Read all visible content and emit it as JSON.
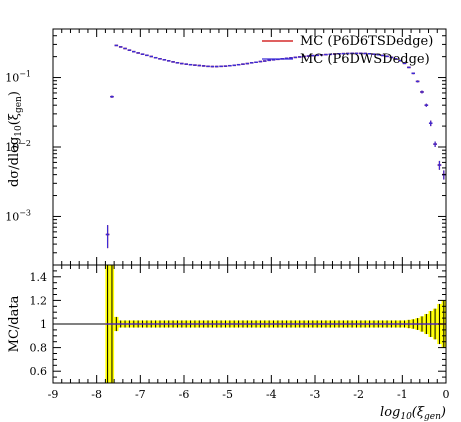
{
  "chart_data": [
    {
      "type": "scatter",
      "ylabel": "dσ/dlog10(ξgen)",
      "ylabel_parts": {
        "main": "dσ/dlog",
        "sub": "10",
        "paren_open": "(ξ",
        "var_sub": "gen",
        "paren_close": ")"
      },
      "y_scale": "log",
      "xlim": [
        -9,
        0
      ],
      "ylim": [
        0.0002,
        0.5
      ],
      "y_ticks": [
        {
          "value": 0.001,
          "base": "10",
          "exp": "−3"
        },
        {
          "value": 0.01,
          "base": "10",
          "exp": "−2"
        },
        {
          "value": 0.1,
          "base": "10",
          "exp": "−1"
        }
      ],
      "legend_position": "top-right",
      "series": [
        {
          "name": "MC (P6D6TSDedge)",
          "color": "#cc0000",
          "x": [
            -7.75,
            -7.65,
            -7.55,
            -7.45,
            -7.35,
            -7.25,
            -7.15,
            -7.05,
            -6.95,
            -6.85,
            -6.75,
            -6.65,
            -6.55,
            -6.45,
            -6.35,
            -6.25,
            -6.15,
            -6.05,
            -5.95,
            -5.85,
            -5.75,
            -5.65,
            -5.55,
            -5.45,
            -5.35,
            -5.25,
            -5.15,
            -5.05,
            -4.95,
            -4.85,
            -4.75,
            -4.65,
            -4.55,
            -4.45,
            -4.35,
            -4.25,
            -4.15,
            -4.05,
            -3.95,
            -3.85,
            -3.75,
            -3.65,
            -3.55,
            -3.45,
            -3.35,
            -3.25,
            -3.15,
            -3.05,
            -2.95,
            -2.85,
            -2.75,
            -2.65,
            -2.55,
            -2.45,
            -2.35,
            -2.25,
            -2.15,
            -2.05,
            -1.95,
            -1.85,
            -1.75,
            -1.65,
            -1.55,
            -1.45,
            -1.35,
            -1.25,
            -1.15,
            -1.05,
            -0.95,
            -0.85,
            -0.75,
            -0.65,
            -0.55,
            -0.45,
            -0.35,
            -0.25,
            -0.15,
            -0.05
          ],
          "y": [
            0.00055,
            0.053,
            0.29,
            0.276,
            0.262,
            0.248,
            0.236,
            0.226,
            0.217,
            0.209,
            0.201,
            0.193,
            0.186,
            0.18,
            0.174,
            0.168,
            0.163,
            0.159,
            0.156,
            0.153,
            0.151,
            0.149,
            0.147,
            0.145,
            0.144,
            0.144,
            0.145,
            0.146,
            0.148,
            0.15,
            0.153,
            0.156,
            0.159,
            0.163,
            0.166,
            0.17,
            0.173,
            0.177,
            0.18,
            0.183,
            0.186,
            0.189,
            0.192,
            0.195,
            0.198,
            0.201,
            0.204,
            0.207,
            0.209,
            0.212,
            0.214,
            0.216,
            0.218,
            0.22,
            0.221,
            0.222,
            0.223,
            0.223,
            0.223,
            0.222,
            0.22,
            0.217,
            0.213,
            0.208,
            0.202,
            0.195,
            0.186,
            0.175,
            0.16,
            0.14,
            0.115,
            0.088,
            0.062,
            0.04,
            0.022,
            0.011,
            0.0055,
            0.004
          ],
          "y_err": [
            0.0002,
            0.002,
            0.004,
            0.003,
            0.003,
            0.003,
            0.003,
            0.003,
            0.003,
            0.003,
            0.003,
            0.003,
            0.003,
            0.003,
            0.003,
            0.003,
            0.003,
            0.003,
            0.003,
            0.003,
            0.003,
            0.003,
            0.003,
            0.003,
            0.003,
            0.003,
            0.003,
            0.003,
            0.003,
            0.003,
            0.003,
            0.003,
            0.003,
            0.003,
            0.003,
            0.003,
            0.003,
            0.003,
            0.003,
            0.003,
            0.003,
            0.003,
            0.003,
            0.003,
            0.003,
            0.003,
            0.003,
            0.003,
            0.003,
            0.003,
            0.003,
            0.003,
            0.003,
            0.003,
            0.003,
            0.003,
            0.003,
            0.003,
            0.003,
            0.003,
            0.003,
            0.003,
            0.003,
            0.003,
            0.003,
            0.003,
            0.003,
            0.003,
            0.003,
            0.003,
            0.003,
            0.003,
            0.003,
            0.002,
            0.002,
            0.001,
            0.0008,
            0.0006
          ]
        },
        {
          "name": "MC (P6DWSDedge)",
          "color": "#3b2bd6",
          "x": [
            -7.75,
            -7.65,
            -7.55,
            -7.45,
            -7.35,
            -7.25,
            -7.15,
            -7.05,
            -6.95,
            -6.85,
            -6.75,
            -6.65,
            -6.55,
            -6.45,
            -6.35,
            -6.25,
            -6.15,
            -6.05,
            -5.95,
            -5.85,
            -5.75,
            -5.65,
            -5.55,
            -5.45,
            -5.35,
            -5.25,
            -5.15,
            -5.05,
            -4.95,
            -4.85,
            -4.75,
            -4.65,
            -4.55,
            -4.45,
            -4.35,
            -4.25,
            -4.15,
            -4.05,
            -3.95,
            -3.85,
            -3.75,
            -3.65,
            -3.55,
            -3.45,
            -3.35,
            -3.25,
            -3.15,
            -3.05,
            -2.95,
            -2.85,
            -2.75,
            -2.65,
            -2.55,
            -2.45,
            -2.35,
            -2.25,
            -2.15,
            -2.05,
            -1.95,
            -1.85,
            -1.75,
            -1.65,
            -1.55,
            -1.45,
            -1.35,
            -1.25,
            -1.15,
            -1.05,
            -0.95,
            -0.85,
            -0.75,
            -0.65,
            -0.55,
            -0.45,
            -0.35,
            -0.25,
            -0.15,
            -0.05
          ],
          "y": [
            0.00055,
            0.053,
            0.29,
            0.276,
            0.262,
            0.248,
            0.236,
            0.226,
            0.217,
            0.209,
            0.201,
            0.193,
            0.186,
            0.18,
            0.174,
            0.168,
            0.163,
            0.159,
            0.156,
            0.153,
            0.151,
            0.149,
            0.147,
            0.145,
            0.144,
            0.144,
            0.145,
            0.146,
            0.148,
            0.15,
            0.153,
            0.156,
            0.159,
            0.163,
            0.166,
            0.17,
            0.173,
            0.177,
            0.18,
            0.183,
            0.186,
            0.189,
            0.192,
            0.195,
            0.198,
            0.201,
            0.204,
            0.207,
            0.209,
            0.212,
            0.214,
            0.216,
            0.218,
            0.22,
            0.221,
            0.222,
            0.223,
            0.223,
            0.223,
            0.222,
            0.22,
            0.217,
            0.213,
            0.208,
            0.202,
            0.195,
            0.186,
            0.175,
            0.16,
            0.14,
            0.115,
            0.088,
            0.062,
            0.04,
            0.022,
            0.011,
            0.0055,
            0.004
          ],
          "y_err": [
            0.0002,
            0.002,
            0.004,
            0.003,
            0.003,
            0.003,
            0.003,
            0.003,
            0.003,
            0.003,
            0.003,
            0.003,
            0.003,
            0.003,
            0.003,
            0.003,
            0.003,
            0.003,
            0.003,
            0.003,
            0.003,
            0.003,
            0.003,
            0.003,
            0.003,
            0.003,
            0.003,
            0.003,
            0.003,
            0.003,
            0.003,
            0.003,
            0.003,
            0.003,
            0.003,
            0.003,
            0.003,
            0.003,
            0.003,
            0.003,
            0.003,
            0.003,
            0.003,
            0.003,
            0.003,
            0.003,
            0.003,
            0.003,
            0.003,
            0.003,
            0.003,
            0.003,
            0.003,
            0.003,
            0.003,
            0.003,
            0.003,
            0.003,
            0.003,
            0.003,
            0.003,
            0.003,
            0.003,
            0.003,
            0.003,
            0.003,
            0.003,
            0.003,
            0.003,
            0.003,
            0.003,
            0.003,
            0.003,
            0.002,
            0.002,
            0.001,
            0.0008,
            0.0006
          ]
        }
      ]
    },
    {
      "type": "area",
      "ylabel": "MC/data",
      "xlabel": "log10(ξgen)",
      "xlabel_parts": {
        "main": "log",
        "sub": "10",
        "paren_open": "(ξ",
        "var_sub": "gen",
        "paren_close": ")"
      },
      "xlim": [
        -9,
        0
      ],
      "ylim": [
        0.5,
        1.5
      ],
      "x_ticks": [
        -9,
        -8,
        -7,
        -6,
        -5,
        -4,
        -3,
        -2,
        -1,
        0
      ],
      "x_tick_labels": [
        "-9",
        "-8",
        "-7",
        "-6",
        "-5",
        "-4",
        "-3",
        "-2",
        "-1",
        "0"
      ],
      "y_ticks": [
        0.6,
        0.8,
        1,
        1.2,
        1.4
      ],
      "y_tick_labels": [
        "0.6",
        "0.8",
        "1",
        "1.2",
        "1.4"
      ],
      "band_color": "#ffff00",
      "reference_line": 1,
      "ratio_x": [
        -7.75,
        -7.65,
        -7.55,
        -7.45,
        -7.35,
        -7.25,
        -7.15,
        -7.05,
        -6.95,
        -6.85,
        -6.75,
        -6.65,
        -6.55,
        -6.45,
        -6.35,
        -6.25,
        -6.15,
        -6.05,
        -5.95,
        -5.85,
        -5.75,
        -5.65,
        -5.55,
        -5.45,
        -5.35,
        -5.25,
        -5.15,
        -5.05,
        -4.95,
        -4.85,
        -4.75,
        -4.65,
        -4.55,
        -4.45,
        -4.35,
        -4.25,
        -4.15,
        -4.05,
        -3.95,
        -3.85,
        -3.75,
        -3.65,
        -3.55,
        -3.45,
        -3.35,
        -3.25,
        -3.15,
        -3.05,
        -2.95,
        -2.85,
        -2.75,
        -2.65,
        -2.55,
        -2.45,
        -2.35,
        -2.25,
        -2.15,
        -2.05,
        -1.95,
        -1.85,
        -1.75,
        -1.65,
        -1.55,
        -1.45,
        -1.35,
        -1.25,
        -1.15,
        -1.05,
        -0.95,
        -0.85,
        -0.75,
        -0.65,
        -0.55,
        -0.45,
        -0.35,
        -0.25,
        -0.15,
        -0.05
      ],
      "ratio_value": 1,
      "band_half_width": [
        0.8,
        0.8,
        0.06,
        0.03,
        0.03,
        0.03,
        0.03,
        0.03,
        0.03,
        0.03,
        0.03,
        0.03,
        0.03,
        0.03,
        0.03,
        0.03,
        0.03,
        0.03,
        0.03,
        0.03,
        0.03,
        0.03,
        0.03,
        0.03,
        0.03,
        0.03,
        0.03,
        0.03,
        0.03,
        0.03,
        0.03,
        0.03,
        0.03,
        0.03,
        0.03,
        0.03,
        0.03,
        0.03,
        0.03,
        0.03,
        0.03,
        0.03,
        0.03,
        0.03,
        0.03,
        0.03,
        0.03,
        0.03,
        0.03,
        0.03,
        0.03,
        0.03,
        0.03,
        0.03,
        0.03,
        0.03,
        0.03,
        0.03,
        0.03,
        0.03,
        0.03,
        0.03,
        0.03,
        0.03,
        0.03,
        0.03,
        0.03,
        0.03,
        0.03,
        0.035,
        0.04,
        0.05,
        0.065,
        0.085,
        0.11,
        0.13,
        0.17,
        0.2
      ]
    }
  ]
}
